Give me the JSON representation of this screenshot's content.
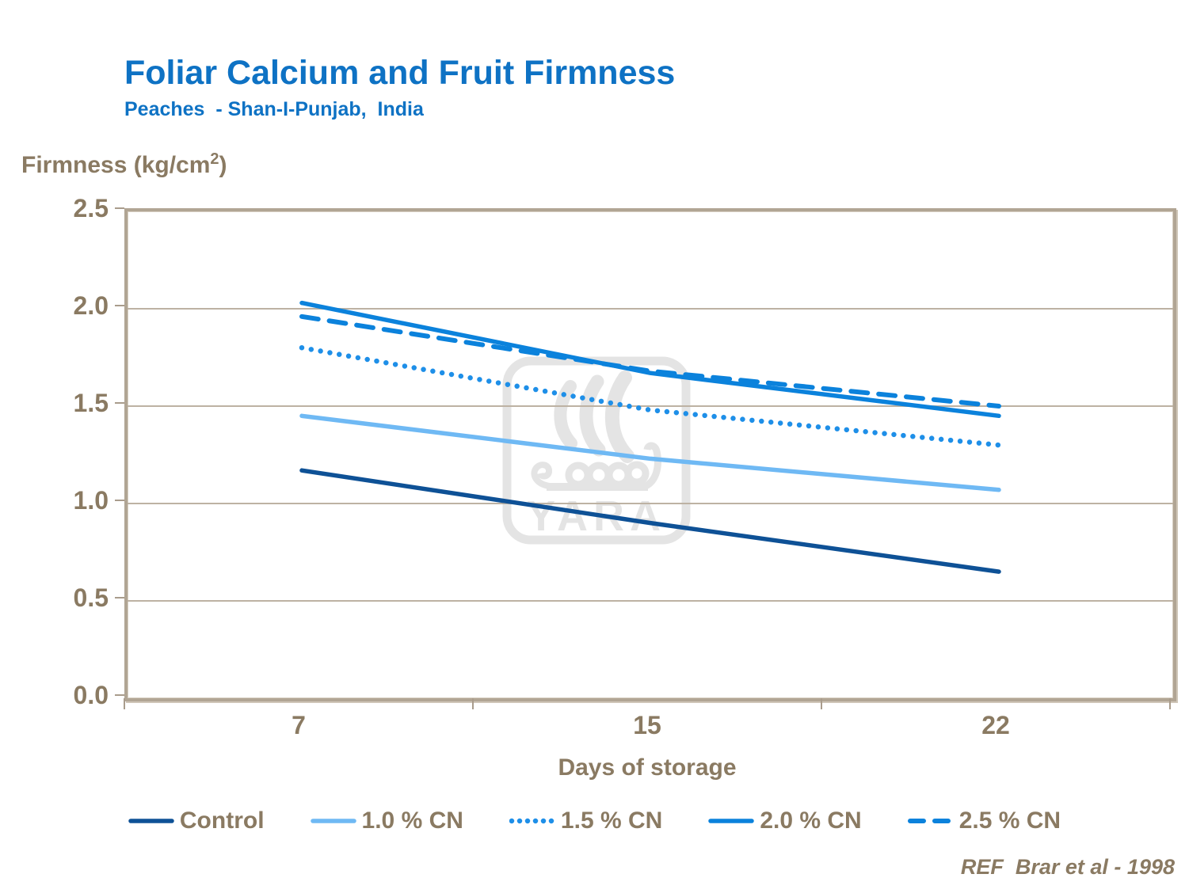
{
  "header": {
    "title": "Foliar Calcium and Fruit Firmness",
    "subtitle": "Peaches  - Shan-I-Punjab,  India"
  },
  "y_axis_label": {
    "prefix": "Firmness (kg/cm",
    "sup": "2",
    "suffix": ")"
  },
  "chart_data": {
    "type": "line",
    "title": "Foliar Calcium and Fruit Firmness",
    "subtitle": "Peaches - Shan-I-Punjab, India",
    "categories": [
      "7",
      "15",
      "22"
    ],
    "x_values": [
      7,
      15,
      22
    ],
    "series": [
      {
        "name": "Control",
        "values": [
          1.17,
          0.9,
          0.65
        ],
        "color": "#0E5196",
        "style": "solid"
      },
      {
        "name": "1.0 % CN",
        "values": [
          1.45,
          1.23,
          1.07
        ],
        "color": "#6FB9F4",
        "style": "solid"
      },
      {
        "name": "1.5 % CN",
        "values": [
          1.8,
          1.48,
          1.3
        ],
        "color": "#1E8FE8",
        "style": "dotted"
      },
      {
        "name": "2.0 % CN",
        "values": [
          2.03,
          1.67,
          1.45
        ],
        "color": "#0B82DC",
        "style": "solid"
      },
      {
        "name": "2.5 % CN",
        "values": [
          1.96,
          1.68,
          1.5
        ],
        "color": "#0B82DC",
        "style": "dashed"
      }
    ],
    "xlabel": "Days of storage",
    "ylabel": "Firmness (kg/cm2)",
    "ylim": [
      0,
      2.5
    ],
    "yticks": [
      "0.0",
      "0.5",
      "1.0",
      "1.5",
      "2.0",
      "2.5"
    ],
    "grid": true,
    "legend_position": "bottom"
  },
  "watermark": {
    "text": "YARA"
  },
  "footer": {
    "reference": "REF  Brar et al - 1998"
  },
  "colors": {
    "title_blue": "#0E72C4",
    "axis_text": "#8A7A62",
    "frame": "#B1A594",
    "gridline": "#BDB2A3",
    "watermark_gray": "#E4E4E4"
  }
}
